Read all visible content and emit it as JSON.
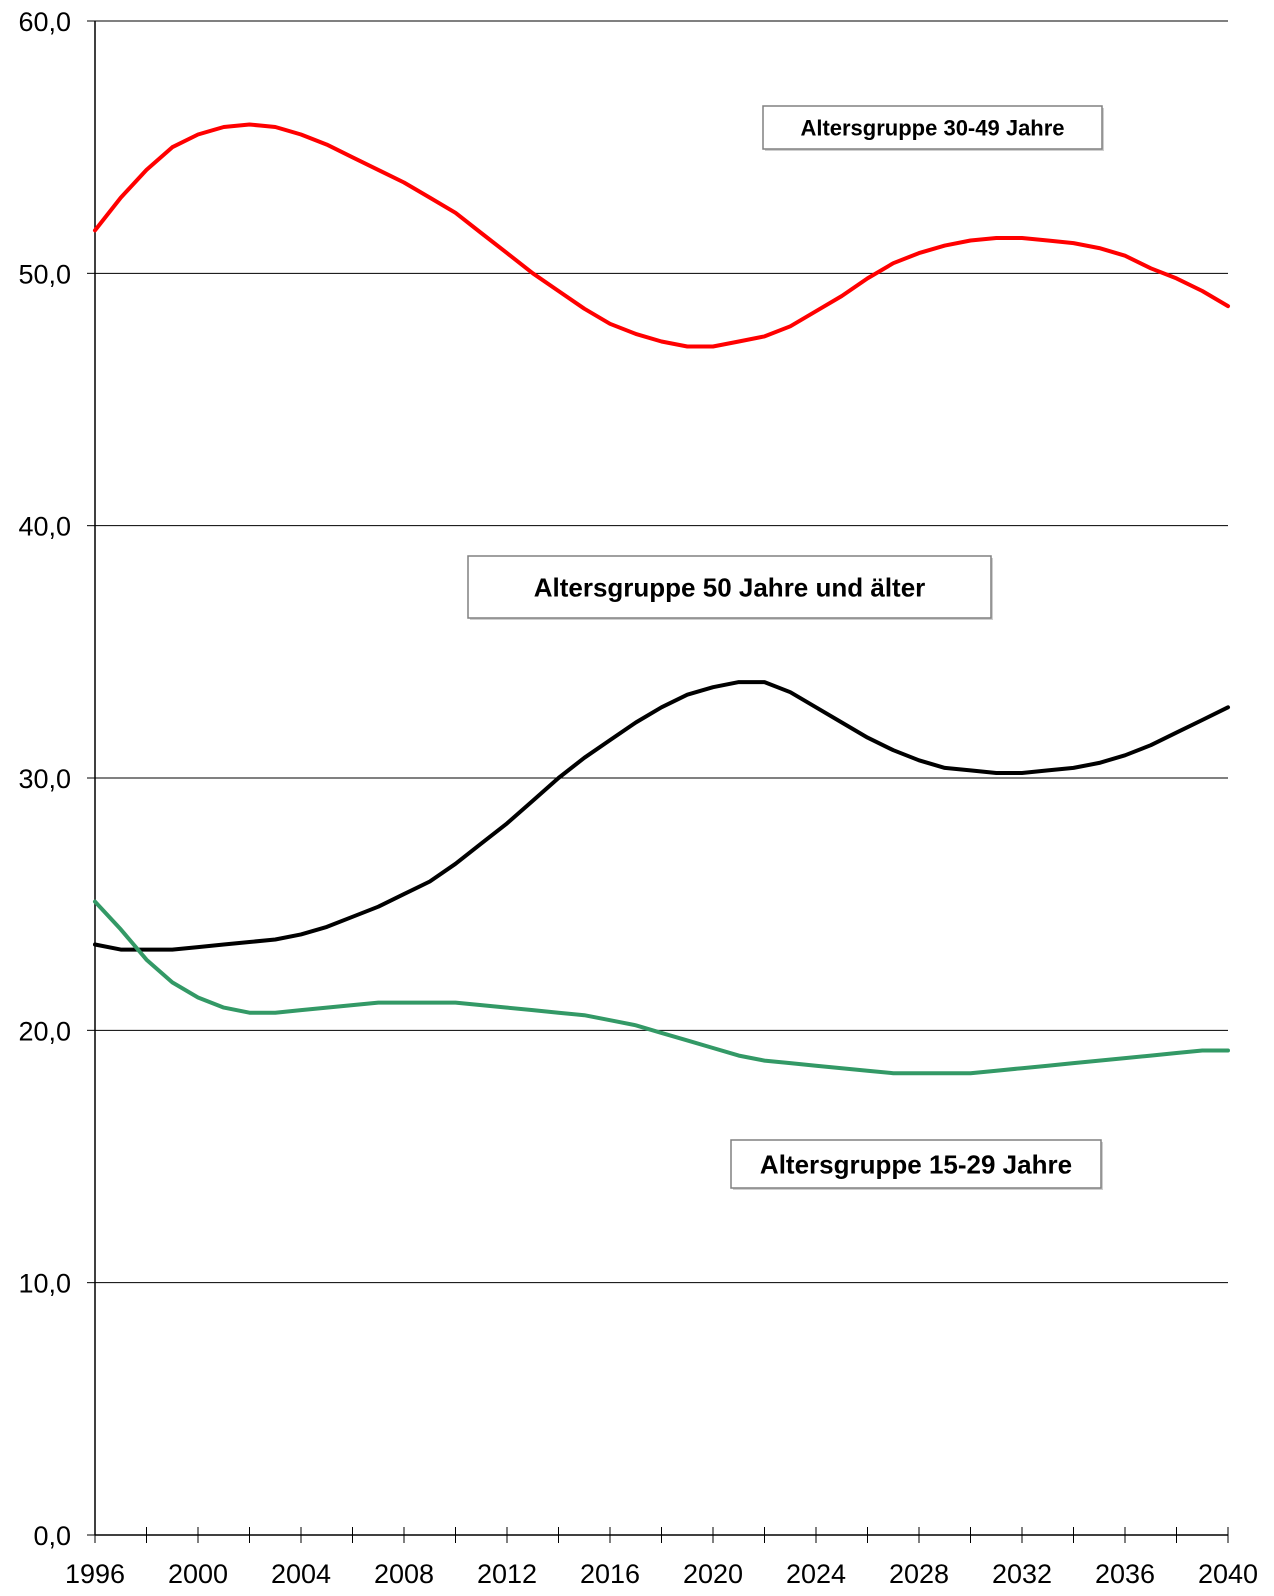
{
  "chart_data": {
    "type": "line",
    "x": [
      1996,
      1997,
      1998,
      1999,
      2000,
      2001,
      2002,
      2003,
      2004,
      2005,
      2006,
      2007,
      2008,
      2009,
      2010,
      2011,
      2012,
      2013,
      2014,
      2015,
      2016,
      2017,
      2018,
      2019,
      2020,
      2021,
      2022,
      2023,
      2024,
      2025,
      2026,
      2027,
      2028,
      2029,
      2030,
      2031,
      2032,
      2033,
      2034,
      2035,
      2036,
      2037,
      2038,
      2039,
      2040
    ],
    "xticks": [
      "1996",
      "2000",
      "2004",
      "2008",
      "2012",
      "2016",
      "2020",
      "2024",
      "2028",
      "2032",
      "2036",
      "2040"
    ],
    "yticks": [
      "0,0",
      "10,0",
      "20,0",
      "30,0",
      "40,0",
      "50,0",
      "60,0"
    ],
    "ylim": [
      0,
      60
    ],
    "xlim": [
      1996,
      2040
    ],
    "grid": "horizontal",
    "series": [
      {
        "name": "Altersgruppe 30-49 Jahre",
        "color": "#ff0000",
        "values": [
          51.7,
          53.0,
          54.1,
          55.0,
          55.5,
          55.8,
          55.9,
          55.8,
          55.5,
          55.1,
          54.6,
          54.1,
          53.6,
          53.0,
          52.4,
          51.6,
          50.8,
          50.0,
          49.3,
          48.6,
          48.0,
          47.6,
          47.3,
          47.1,
          47.1,
          47.3,
          47.5,
          47.9,
          48.5,
          49.1,
          49.8,
          50.4,
          50.8,
          51.1,
          51.3,
          51.4,
          51.4,
          51.3,
          51.2,
          51.0,
          50.7,
          50.2,
          49.8,
          49.3,
          48.7
        ]
      },
      {
        "name": "Altersgruppe 50 Jahre und älter",
        "color": "#000000",
        "values": [
          23.4,
          23.2,
          23.2,
          23.2,
          23.3,
          23.4,
          23.5,
          23.6,
          23.8,
          24.1,
          24.5,
          24.9,
          25.4,
          25.9,
          26.6,
          27.4,
          28.2,
          29.1,
          30.0,
          30.8,
          31.5,
          32.2,
          32.8,
          33.3,
          33.6,
          33.8,
          33.8,
          33.4,
          32.8,
          32.2,
          31.6,
          31.1,
          30.7,
          30.4,
          30.3,
          30.2,
          30.2,
          30.3,
          30.4,
          30.6,
          30.9,
          31.3,
          31.8,
          32.3,
          32.8
        ]
      },
      {
        "name": "Altersgruppe 15-29 Jahre",
        "color": "#339966",
        "values": [
          25.1,
          24.0,
          22.8,
          21.9,
          21.3,
          20.9,
          20.7,
          20.7,
          20.8,
          20.9,
          21.0,
          21.1,
          21.1,
          21.1,
          21.1,
          21.0,
          20.9,
          20.8,
          20.7,
          20.6,
          20.4,
          20.2,
          19.9,
          19.6,
          19.3,
          19.0,
          18.8,
          18.7,
          18.6,
          18.5,
          18.4,
          18.3,
          18.3,
          18.3,
          18.3,
          18.4,
          18.5,
          18.6,
          18.7,
          18.8,
          18.9,
          19.0,
          19.1,
          19.2,
          19.2
        ]
      }
    ],
    "annotations": [
      {
        "text": "Altersgruppe 30-49 Jahre",
        "series": 0
      },
      {
        "text": "Altersgruppe 50 Jahre und älter",
        "series": 1
      },
      {
        "text": "Altersgruppe 15-29 Jahre",
        "series": 2
      }
    ]
  }
}
